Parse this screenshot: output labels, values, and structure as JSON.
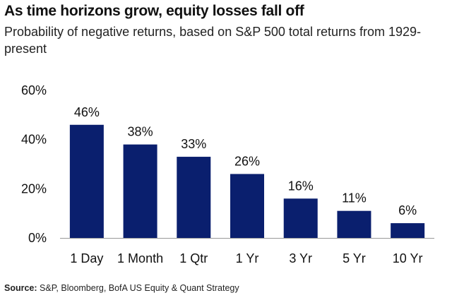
{
  "header": {
    "title": "As time horizons grow, equity losses fall off",
    "subtitle": "Probability of negative returns, based on S&P 500 total returns from 1929-present"
  },
  "footer": {
    "source_label": "Source:",
    "source_text": "S&P, Bloomberg, BofA US Equity & Quant Strategy"
  },
  "colors": {
    "bar": "#0a1f6e",
    "text": "#111111"
  },
  "chart_data": {
    "type": "bar",
    "title": "As time horizons grow, equity losses fall off",
    "subtitle": "Probability of negative returns, based on S&P 500 total returns from 1929-present",
    "categories": [
      "1 Day",
      "1 Month",
      "1 Qtr",
      "1 Yr",
      "3 Yr",
      "5 Yr",
      "10 Yr"
    ],
    "values": [
      46,
      38,
      33,
      26,
      16,
      11,
      6
    ],
    "data_labels": [
      "46%",
      "38%",
      "33%",
      "26%",
      "16%",
      "11%",
      "6%"
    ],
    "ylim": [
      0,
      60
    ],
    "yticks": [
      0,
      20,
      40,
      60
    ],
    "ytick_labels": [
      "0%",
      "20%",
      "40%",
      "60%"
    ],
    "xlabel": "",
    "ylabel": "",
    "grid": false,
    "legend": "none"
  }
}
